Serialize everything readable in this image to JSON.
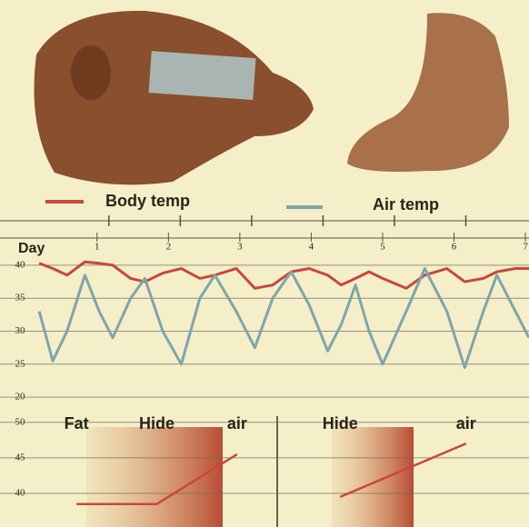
{
  "chart_data": [
    {
      "type": "line",
      "xlabel": "Day",
      "x": [
        0.19,
        0.38,
        0.58,
        0.83,
        1.03,
        1.22,
        1.47,
        1.67,
        1.92,
        2.18,
        2.44,
        2.65,
        2.95,
        3.21,
        3.46,
        3.72,
        3.97,
        4.23,
        4.42,
        4.62,
        4.81,
        5.0,
        5.33,
        5.59,
        5.9,
        6.15,
        6.41,
        6.6,
        6.86,
        7.05
      ],
      "series": [
        {
          "name": "Body temp",
          "color": "#c9473b",
          "values": [
            40.3,
            39.5,
            38.5,
            40.5,
            40.3,
            40,
            38,
            37.5,
            38.8,
            39.5,
            38,
            38.5,
            39.5,
            36.5,
            37,
            39,
            39.5,
            38.5,
            37,
            38,
            39,
            38,
            36.5,
            38.5,
            39.5,
            37.5,
            38,
            39,
            39.5,
            39.5
          ]
        },
        {
          "name": "Air temp",
          "color": "#7fa5ab",
          "values": [
            33,
            25.5,
            30,
            38.5,
            33,
            29,
            35,
            38,
            30,
            25,
            35,
            38.5,
            33,
            27.5,
            35,
            39,
            34,
            27,
            31,
            37,
            30,
            25,
            33,
            39.5,
            33,
            24.5,
            33,
            38.5,
            33,
            29
          ]
        }
      ],
      "xlim": [
        0.15,
        7.05
      ],
      "xticks": [
        1,
        2,
        3,
        4,
        5,
        6,
        7
      ],
      "ylim": [
        18.5,
        41.5
      ],
      "yticks": [
        40,
        35,
        30,
        25,
        20
      ],
      "grid": true
    },
    {
      "type": "profile",
      "color": "#c9473b",
      "panels": [
        {
          "categories": [
            "Fat",
            "Hide",
            "air"
          ],
          "values": [
            38.5,
            38.5,
            45.5
          ]
        },
        {
          "categories": [
            "Hide",
            "air"
          ],
          "values": [
            39.5,
            47
          ]
        }
      ],
      "ylim": [
        36.8,
        51.5
      ],
      "yticks": [
        50,
        45,
        40
      ],
      "grid": true
    }
  ]
}
